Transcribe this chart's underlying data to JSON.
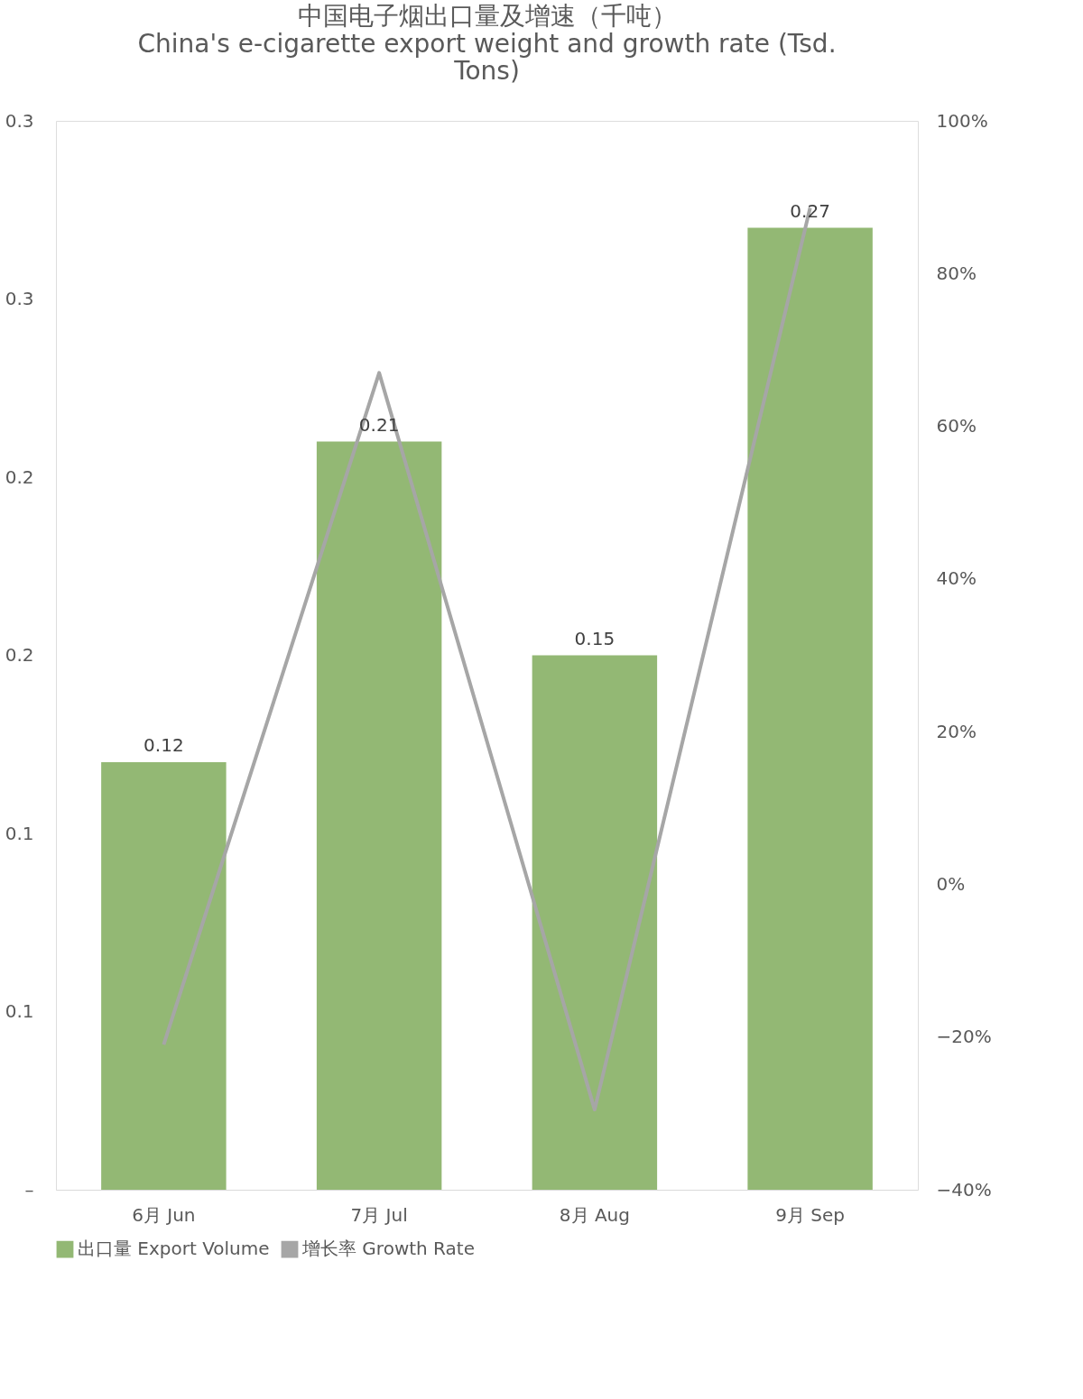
{
  "chart_data": {
    "type": "bar",
    "title": "中国电子烟出口量及增速（千吨）",
    "subtitle": "China's e-cigarette export weight and growth rate (Tsd. Tons)",
    "categories": [
      "6月 Jun",
      "7月 Jul",
      "8月 Aug",
      "9月 Sep"
    ],
    "series": [
      {
        "name": "出口量 Export Volume",
        "color": "#93b874",
        "values": [
          0.12,
          0.21,
          0.15,
          0.27
        ],
        "value_labels": [
          "0.12",
          "0.21",
          "0.15",
          "0.27"
        ]
      },
      {
        "name": "增长率 Growth Rate",
        "type": "line",
        "axis": "y2",
        "color": "#a6a6a6",
        "values": [
          -21,
          67,
          -29.5,
          88.6
        ]
      }
    ],
    "ylim": [
      0,
      0.3
    ],
    "yticks": [
      {
        "value": 0,
        "label": "–"
      },
      {
        "value": 0.05,
        "label": "0.1"
      },
      {
        "value": 0.1,
        "label": "0.1"
      },
      {
        "value": 0.15,
        "label": "0.2"
      },
      {
        "value": 0.2,
        "label": "0.2"
      },
      {
        "value": 0.25,
        "label": "0.3"
      },
      {
        "value": 0.3,
        "label": "0.3"
      }
    ],
    "y2lim": [
      -40,
      100
    ],
    "y2ticks": [
      {
        "value": -40,
        "label": "−40%"
      },
      {
        "value": -20,
        "label": "−20%"
      },
      {
        "value": 0,
        "label": "0%"
      },
      {
        "value": 20,
        "label": "20%"
      },
      {
        "value": 40,
        "label": "40%"
      },
      {
        "value": 60,
        "label": "60%"
      },
      {
        "value": 80,
        "label": "80%"
      },
      {
        "value": 100,
        "label": "100%"
      }
    ],
    "grid": false,
    "legend": "bottom"
  }
}
